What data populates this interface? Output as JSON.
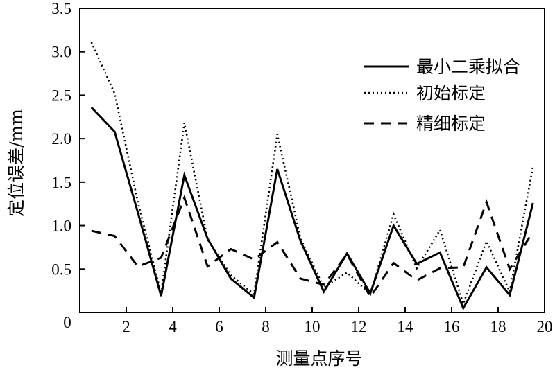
{
  "chart_data": {
    "type": "line",
    "xlabel": "测量点序号",
    "ylabel": "定位误差/mm",
    "xlim": [
      0,
      20
    ],
    "ylim": [
      0,
      3.5
    ],
    "xticks": [
      2,
      4,
      6,
      8,
      10,
      12,
      14,
      16,
      18,
      20
    ],
    "yticks": [
      0,
      0.5,
      1.0,
      1.5,
      2.0,
      2.5,
      3.0,
      3.5
    ],
    "ytick_labels": [
      "0",
      "0.5",
      "1.0",
      "1.5",
      "2.0",
      "2.5",
      "3.0",
      "3.5"
    ],
    "x0_label": "0",
    "grid": false,
    "legend_position": "top-right",
    "x": [
      0.5,
      1.5,
      2.5,
      3.5,
      4.5,
      5.5,
      6.5,
      7.5,
      8.5,
      9.5,
      10.5,
      11.5,
      12.5,
      13.5,
      14.5,
      15.5,
      16.5,
      17.5,
      18.5,
      19.5
    ],
    "series": [
      {
        "name": "最小二乘拟合",
        "style": "solid",
        "values": [
          2.36,
          2.08,
          1.15,
          0.19,
          1.58,
          0.85,
          0.39,
          0.17,
          1.65,
          0.82,
          0.24,
          0.68,
          0.22,
          1.0,
          0.56,
          0.69,
          0.05,
          0.52,
          0.2,
          1.26
        ]
      },
      {
        "name": "初始标定",
        "style": "dotted",
        "values": [
          3.11,
          2.52,
          1.27,
          0.22,
          2.18,
          0.84,
          0.43,
          0.21,
          2.05,
          0.85,
          0.29,
          0.46,
          0.21,
          1.13,
          0.51,
          0.95,
          0.1,
          0.82,
          0.24,
          1.68
        ]
      },
      {
        "name": "精细标定",
        "style": "dashed",
        "values": [
          0.94,
          0.88,
          0.53,
          0.63,
          1.32,
          0.53,
          0.73,
          0.61,
          0.81,
          0.39,
          0.32,
          0.67,
          0.18,
          0.57,
          0.37,
          0.51,
          0.52,
          1.27,
          0.5,
          0.93
        ]
      }
    ]
  }
}
